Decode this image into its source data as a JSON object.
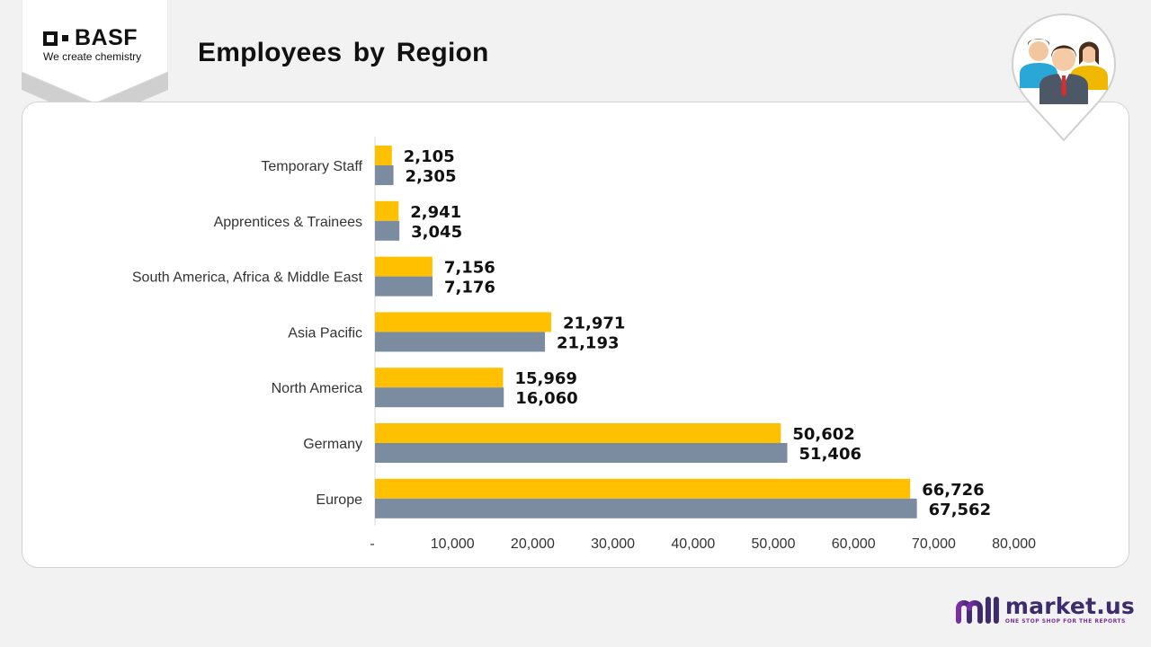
{
  "header": {
    "logo_word": "BASF",
    "logo_tagline": "We create chemistry",
    "title": "Employees by Region"
  },
  "footer": {
    "brand_name": "market.us",
    "brand_tagline": "ONE STOP SHOP FOR THE REPORTS"
  },
  "colors": {
    "series_1": "#ffc000",
    "series_2": "#7b8ba0",
    "brand_purple": "#3d2b6b"
  },
  "icons": [
    "basf-logo-icon",
    "people-pin-icon",
    "market-us-logo-icon"
  ],
  "chart_data": {
    "type": "bar",
    "orientation": "horizontal",
    "title": "Employees by Region",
    "categories": [
      "Temporary Staff",
      "Apprentices & Trainees",
      "South America, Africa & Middle East",
      "Asia Pacific",
      "North America",
      "Germany",
      "Europe"
    ],
    "series": [
      {
        "values": [
          2105,
          2941,
          7156,
          21971,
          15969,
          50602,
          66726
        ]
      },
      {
        "values": [
          2305,
          3045,
          7176,
          21193,
          16060,
          51406,
          67562
        ]
      }
    ],
    "value_labels": [
      [
        "2,105",
        "2,941",
        "7,156",
        "21,971",
        "15,969",
        "50,602",
        "66,726"
      ],
      [
        "2,305",
        "3,045",
        "7,176",
        "21,193",
        "16,060",
        "51,406",
        "67,562"
      ]
    ],
    "xlim": [
      0,
      80000
    ],
    "ticks": [
      0,
      10000,
      20000,
      30000,
      40000,
      50000,
      60000,
      70000,
      80000
    ],
    "tick_labels": [
      "-",
      "10,000",
      "20,000",
      "30,000",
      "40,000",
      "50,000",
      "60,000",
      "70,000",
      "80,000"
    ],
    "grid": false,
    "legend": "none"
  }
}
